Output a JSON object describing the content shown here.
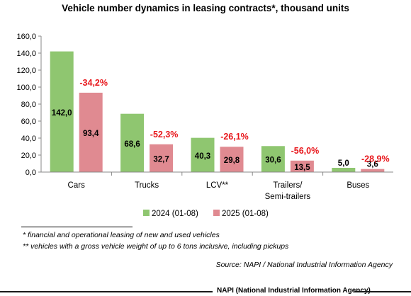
{
  "chart_data": {
    "type": "bar",
    "title": "Vehicle number dynamics in leasing contracts*, thousand units",
    "categories": [
      [
        "Cars"
      ],
      [
        "Trucks"
      ],
      [
        "LCV**"
      ],
      [
        "Trailers/",
        "Semi-trailers"
      ],
      [
        "Buses"
      ]
    ],
    "series": [
      {
        "name": "2024 (01-08)",
        "values": [
          142.0,
          68.6,
          40.3,
          30.6,
          5.0
        ],
        "labels": [
          "142,0",
          "68,6",
          "40,3",
          "30,6",
          "5,0"
        ],
        "color": "#8fc670"
      },
      {
        "name": "2025 (01-08)",
        "values": [
          93.4,
          32.7,
          29.8,
          13.5,
          3.6
        ],
        "labels": [
          "93,4",
          "32,7",
          "29,8",
          "13,5",
          "3,6"
        ],
        "color": "#e08a91"
      }
    ],
    "changes": [
      "-34,2%",
      "-52,3%",
      "-26,1%",
      "-56,0%",
      "-28,9%"
    ],
    "change_color": "#e8161b",
    "ylim": [
      0,
      160
    ],
    "yticks": [
      "0,0",
      "20,0",
      "40,0",
      "60,0",
      "80,0",
      "100,0",
      "120,0",
      "140,0",
      "160,0"
    ],
    "ytick_values": [
      0,
      20,
      40,
      60,
      80,
      100,
      120,
      140,
      160
    ],
    "legend_position": "bottom",
    "grid": false
  },
  "footnotes": [
    "* financial and operational leasing of new and used vehicles",
    "** vehicles with a gross vehicle weight of up to 6 tons inclusive, including pickups"
  ],
  "source": "Source: NAPI / National Industrial Information Agency",
  "brand": "NAPI (National Industrial Information Agency)"
}
